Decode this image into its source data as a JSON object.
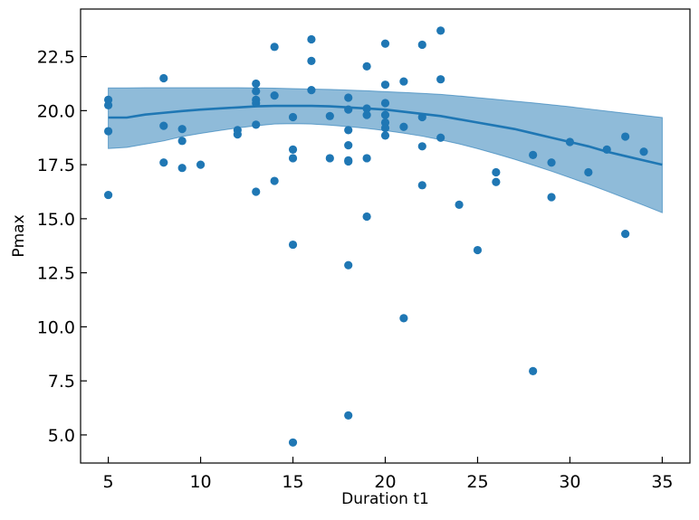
{
  "chart_data": {
    "type": "scatter",
    "title": "",
    "xlabel": "Duration t1",
    "ylabel": "Pmax",
    "xlim": [
      3.5,
      36.5
    ],
    "ylim": [
      3.7,
      24.7
    ],
    "xticks": [
      5,
      10,
      15,
      20,
      25,
      30,
      35
    ],
    "xtick_labels": [
      "5",
      "10",
      "15",
      "20",
      "25",
      "30",
      "35"
    ],
    "yticks": [
      5.0,
      7.5,
      10.0,
      12.5,
      15.0,
      17.5,
      20.0,
      22.5
    ],
    "ytick_labels": [
      "5.0",
      "7.5",
      "10.0",
      "12.5",
      "15.0",
      "17.5",
      "20.0",
      "22.5"
    ],
    "grid": false,
    "legend": "none",
    "colors": {
      "points": "#1f77b4",
      "line": "#1f77b4",
      "band": "#1f77b4"
    },
    "points": [
      [
        5,
        20.5
      ],
      [
        5,
        20.25
      ],
      [
        5,
        19.05
      ],
      [
        5,
        16.1
      ],
      [
        8,
        21.5
      ],
      [
        8,
        19.3
      ],
      [
        8,
        17.6
      ],
      [
        9,
        19.15
      ],
      [
        9,
        18.6
      ],
      [
        9,
        17.35
      ],
      [
        10,
        17.5
      ],
      [
        12,
        19.1
      ],
      [
        12,
        18.9
      ],
      [
        13,
        21.25
      ],
      [
        13,
        20.9
      ],
      [
        13,
        20.5
      ],
      [
        13,
        20.35
      ],
      [
        13,
        19.35
      ],
      [
        13,
        16.25
      ],
      [
        14,
        22.95
      ],
      [
        14,
        20.7
      ],
      [
        14,
        16.75
      ],
      [
        15,
        19.7
      ],
      [
        15,
        18.2
      ],
      [
        15,
        17.8
      ],
      [
        15,
        13.8
      ],
      [
        15,
        4.65
      ],
      [
        16,
        23.3
      ],
      [
        16,
        22.3
      ],
      [
        16,
        20.95
      ],
      [
        17,
        19.75
      ],
      [
        17,
        17.8
      ],
      [
        18,
        20.6
      ],
      [
        18,
        20.05
      ],
      [
        18,
        19.1
      ],
      [
        18,
        18.4
      ],
      [
        18,
        17.7
      ],
      [
        18,
        17.65
      ],
      [
        18,
        12.85
      ],
      [
        18,
        5.9
      ],
      [
        19,
        22.05
      ],
      [
        19,
        20.1
      ],
      [
        19,
        19.8
      ],
      [
        19,
        17.8
      ],
      [
        19,
        15.1
      ],
      [
        20,
        23.1
      ],
      [
        20,
        21.2
      ],
      [
        20,
        20.35
      ],
      [
        20,
        19.8
      ],
      [
        20,
        19.45
      ],
      [
        20,
        19.2
      ],
      [
        20,
        18.85
      ],
      [
        21,
        21.35
      ],
      [
        21,
        19.25
      ],
      [
        21,
        10.4
      ],
      [
        22,
        23.05
      ],
      [
        22,
        19.7
      ],
      [
        22,
        18.35
      ],
      [
        22,
        16.55
      ],
      [
        23,
        23.7
      ],
      [
        23,
        21.45
      ],
      [
        23,
        18.75
      ],
      [
        24,
        15.65
      ],
      [
        25,
        13.55
      ],
      [
        26,
        17.15
      ],
      [
        26,
        16.7
      ],
      [
        28,
        17.95
      ],
      [
        28,
        7.95
      ],
      [
        29,
        17.6
      ],
      [
        29,
        16.0
      ],
      [
        30,
        18.55
      ],
      [
        31,
        17.15
      ],
      [
        32,
        18.2
      ],
      [
        33,
        18.8
      ],
      [
        33,
        14.3
      ],
      [
        34,
        18.1
      ]
    ],
    "trend_line": {
      "x": [
        5,
        6,
        7,
        8,
        9,
        10,
        11,
        12,
        13,
        14,
        15,
        16,
        17,
        18,
        19,
        20,
        21,
        22,
        23,
        24,
        25,
        26,
        27,
        28,
        29,
        30,
        31,
        32,
        33,
        34,
        35
      ],
      "y": [
        19.68,
        19.68,
        19.82,
        19.9,
        19.98,
        20.05,
        20.1,
        20.15,
        20.2,
        20.22,
        20.22,
        20.22,
        20.2,
        20.15,
        20.1,
        20.05,
        19.95,
        19.85,
        19.75,
        19.6,
        19.45,
        19.3,
        19.15,
        18.95,
        18.75,
        18.55,
        18.35,
        18.1,
        17.9,
        17.7,
        17.5
      ]
    },
    "confidence_band": {
      "x": [
        5,
        6,
        7,
        8,
        9,
        10,
        11,
        12,
        13,
        14,
        15,
        16,
        17,
        18,
        19,
        20,
        21,
        22,
        23,
        24,
        25,
        26,
        27,
        28,
        29,
        30,
        31,
        32,
        33,
        34,
        35
      ],
      "upper": [
        21.05,
        21.05,
        21.06,
        21.06,
        21.06,
        21.06,
        21.06,
        21.06,
        21.05,
        21.04,
        21.02,
        21.0,
        20.98,
        20.95,
        20.92,
        20.88,
        20.84,
        20.8,
        20.75,
        20.68,
        20.6,
        20.52,
        20.44,
        20.36,
        20.27,
        20.18,
        20.08,
        19.98,
        19.88,
        19.78,
        19.68
      ],
      "lower": [
        18.25,
        18.3,
        18.45,
        18.6,
        18.8,
        18.95,
        19.08,
        19.2,
        19.3,
        19.38,
        19.4,
        19.38,
        19.33,
        19.26,
        19.18,
        19.08,
        18.96,
        18.82,
        18.65,
        18.46,
        18.24,
        18.0,
        17.75,
        17.48,
        17.2,
        16.9,
        16.6,
        16.28,
        15.95,
        15.62,
        15.28
      ]
    }
  }
}
